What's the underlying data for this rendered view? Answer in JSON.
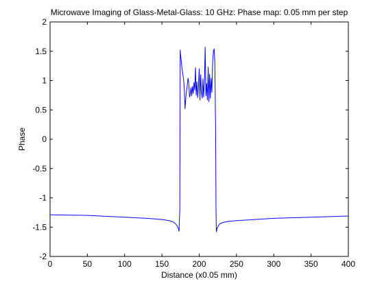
{
  "chart_data": {
    "type": "line",
    "title": "Microwave Imaging of Glass-Metal-Glass: 10 GHz: Phase map: 0.05 mm per step",
    "xlabel": "Distance (x0.05 mm)",
    "ylabel": "Phase",
    "xlim": [
      0,
      400
    ],
    "ylim": [
      -2,
      2
    ],
    "xticks": [
      0,
      50,
      100,
      150,
      200,
      250,
      300,
      350,
      400
    ],
    "yticks": [
      -2,
      -1.5,
      -1,
      -0.5,
      0,
      0.5,
      1,
      1.5,
      2
    ],
    "xtick_labels": [
      "0",
      "50",
      "100",
      "150",
      "200",
      "250",
      "300",
      "350",
      "400"
    ],
    "ytick_labels": [
      "-2",
      "-1.5",
      "-1",
      "-0.5",
      "0",
      "0.5",
      "1",
      "1.5",
      "2"
    ],
    "grid": false,
    "series": [
      {
        "color": "#0000ff",
        "x": [
          0,
          50,
          100,
          130,
          150,
          160,
          165,
          168,
          170,
          172,
          173,
          174,
          174.5,
          175,
          177,
          179,
          180,
          181,
          182,
          183,
          184,
          185,
          186,
          187,
          188,
          189,
          190,
          191,
          192,
          193,
          194,
          195,
          196,
          197,
          198,
          199,
          200,
          201,
          202,
          203,
          204,
          205,
          206,
          207,
          208,
          209,
          210,
          211,
          212,
          213,
          214,
          215,
          216,
          217,
          218,
          219,
          220,
          221,
          222,
          222.5,
          223,
          224,
          226,
          228,
          232,
          240,
          250,
          275,
          300,
          350,
          400
        ],
        "y": [
          -1.29,
          -1.3,
          -1.33,
          -1.35,
          -1.37,
          -1.39,
          -1.41,
          -1.44,
          -1.47,
          -1.52,
          -1.57,
          -1.2,
          1.52,
          1.45,
          1.2,
          1.02,
          0.85,
          0.52,
          0.7,
          0.82,
          0.92,
          1.04,
          0.95,
          0.72,
          0.76,
          0.88,
          0.74,
          0.9,
          0.78,
          0.97,
          0.84,
          1.22,
          0.75,
          0.98,
          0.71,
          0.89,
          1.2,
          0.67,
          1.1,
          0.8,
          0.7,
          1.03,
          0.72,
          0.96,
          1.57,
          0.74,
          0.95,
          0.67,
          1.23,
          0.64,
          1.11,
          0.7,
          1.04,
          0.8,
          1.32,
          1.5,
          1.54,
          1.3,
          0.2,
          -1.2,
          -1.58,
          -1.52,
          -1.47,
          -1.44,
          -1.42,
          -1.4,
          -1.39,
          -1.37,
          -1.35,
          -1.33,
          -1.31
        ]
      }
    ]
  }
}
